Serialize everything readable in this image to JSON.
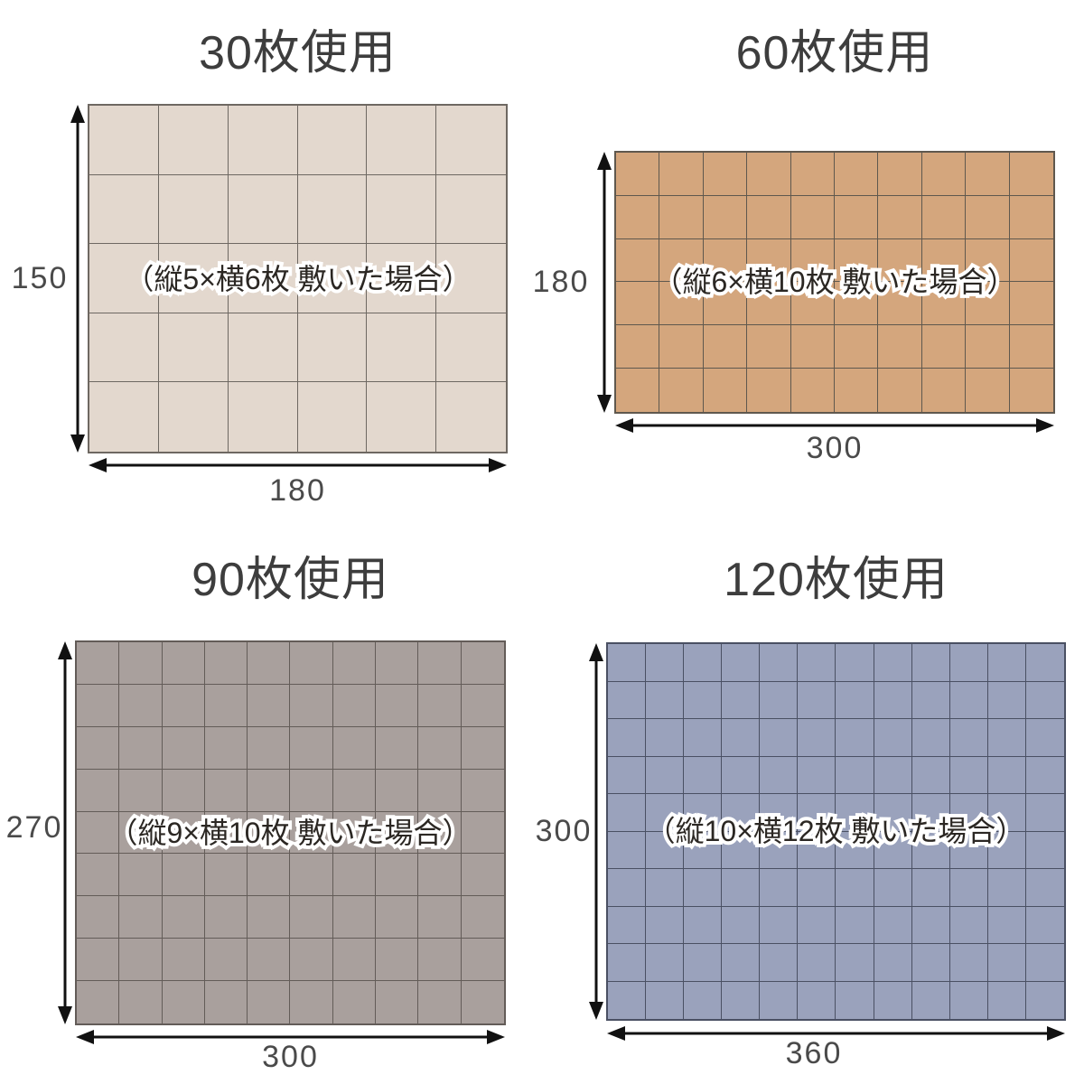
{
  "colors": {
    "background": "#ffffff",
    "heading_text": "#3d3d3d",
    "dimension_text": "#4a4a4a",
    "note_text": "#2b2723",
    "note_outline": "#ffffff",
    "arrow": "#111111"
  },
  "panels": [
    {
      "title": "30枚使用",
      "note": "（縦5×横6枚 敷いた場合）",
      "rows": 5,
      "cols": 6,
      "height": "150",
      "width": "180",
      "colors": {
        "tile": "#e3d8ce",
        "line": "#6e6862"
      }
    },
    {
      "title": "60枚使用",
      "note": "（縦6×横10枚 敷いた場合）",
      "rows": 6,
      "cols": 10,
      "height": "180",
      "width": "300",
      "colors": {
        "tile": "#d4a67d",
        "line": "#5f584e"
      }
    },
    {
      "title": "90枚使用",
      "note": "（縦9×横10枚 敷いた場合）",
      "rows": 9,
      "cols": 10,
      "height": "270",
      "width": "300",
      "colors": {
        "tile": "#a9a09d",
        "line": "#635c58"
      }
    },
    {
      "title": "120枚使用",
      "note": "（縦10×横12枚 敷いた場合）",
      "rows": 10,
      "cols": 12,
      "height": "300",
      "width": "360",
      "colors": {
        "tile": "#9aa2bc",
        "line": "#4a5063"
      }
    }
  ]
}
